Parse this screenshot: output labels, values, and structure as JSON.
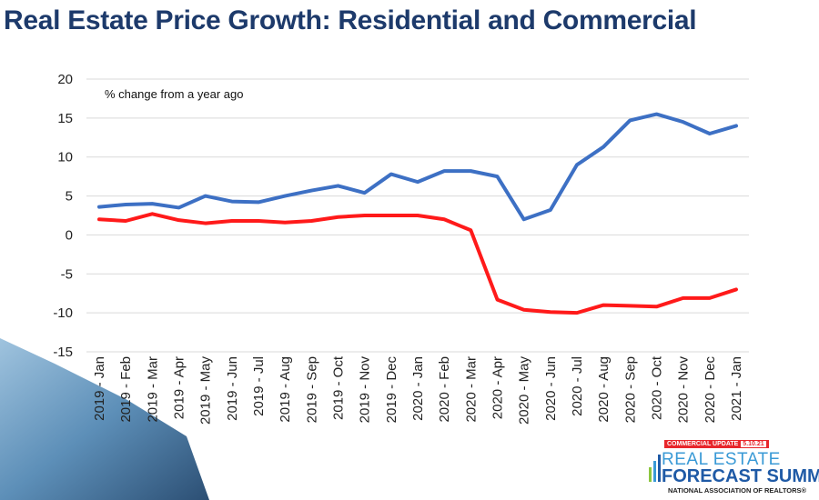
{
  "title": "Real Estate Price Growth: Residential and Commercial",
  "chart_data": {
    "type": "line",
    "title": "Real Estate Price Growth: Residential and Commercial",
    "annotation": "% change from a year ago",
    "xlabel": "",
    "ylabel": "",
    "ylim": [
      -15,
      20
    ],
    "yticks": [
      20,
      15,
      10,
      5,
      0,
      -5,
      -10,
      -15
    ],
    "grid": true,
    "legend": "none",
    "categories": [
      "2019 - Jan",
      "2019 - Feb",
      "2019 - Mar",
      "2019 - Apr",
      "2019 - May",
      "2019 - Jun",
      "2019 - Jul",
      "2019 - Aug",
      "2019 - Sep",
      "2019 - Oct",
      "2019 - Nov",
      "2019 - Dec",
      "2020 - Jan",
      "2020 - Feb",
      "2020 - Mar",
      "2020 - Apr",
      "2020 - May",
      "2020 - Jun",
      "2020 - Jul",
      "2020 - Aug",
      "2020 - Sep",
      "2020 - Oct",
      "2020 - Nov",
      "2020 - Dec",
      "2021 - Jan"
    ],
    "series": [
      {
        "color": "#3d70c4",
        "values": [
          3.6,
          3.9,
          4.0,
          3.5,
          5.0,
          4.3,
          4.2,
          5.0,
          5.7,
          6.3,
          5.4,
          7.8,
          6.8,
          8.2,
          8.2,
          7.5,
          2.0,
          3.2,
          9.0,
          11.3,
          14.7,
          15.5,
          14.5,
          13.0,
          14.0
        ]
      },
      {
        "color": "#ff1a1a",
        "values": [
          2.0,
          1.8,
          2.7,
          1.9,
          1.5,
          1.8,
          1.8,
          1.6,
          1.8,
          2.3,
          2.5,
          2.5,
          2.5,
          2.0,
          0.6,
          -8.3,
          -9.6,
          -9.9,
          -10.0,
          -9.0,
          -9.1,
          -9.2,
          -8.1,
          -8.1,
          -7.0
        ]
      }
    ]
  },
  "logo": {
    "badge": "COMMERCIAL UPDATE",
    "date": "5.10.21",
    "line1": "REAL ESTATE",
    "line2": "FORECAST SUMMIT",
    "line3": "NATIONAL ASSOCIATION OF REALTORS®"
  }
}
